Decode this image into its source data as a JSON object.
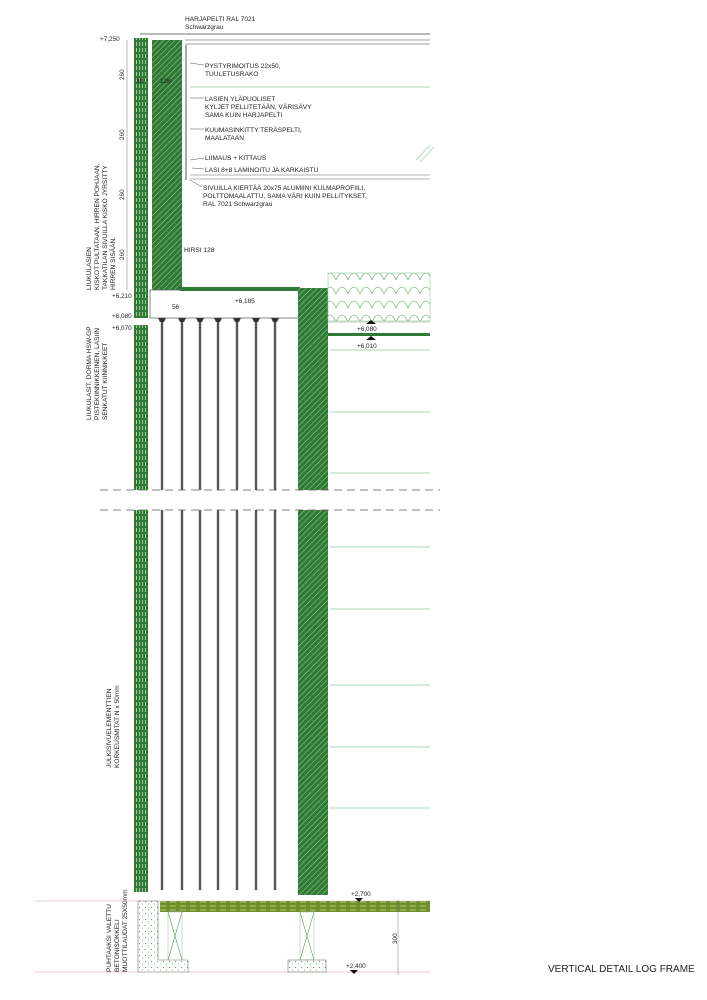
{
  "colors": {
    "log_green": "#2f7a35",
    "hatch_light": "#9fd39f",
    "slab_olive": "#6f8f2a",
    "line_green": "#8fc79b",
    "concrete": "#5aa05a"
  },
  "title": "VERTICAL DETAIL LOG FRAME",
  "annotations": {
    "roof_flashing": [
      "HARJAPELTI RAL 7021",
      "Schwarzgrau"
    ],
    "battens": [
      "PYSTYRIMOITUS 22x50,",
      "TUULETUSRAKO"
    ],
    "glass_edges": [
      "LASIEN YLÄPUOLISET",
      "KYLJET PELLITETÄÄN, VÄRISÄVY",
      "SAMA KUIN HARJAPELTI"
    ],
    "steel_sheet": [
      "KUUMASINKITTY TERÄSPELTI,",
      "MAALATAAN"
    ],
    "gluing": "LIIMAUS + KITTAUS",
    "glass": "LASI 8+8 LAMINOITU JA KARKAISTU",
    "profile": [
      "SIVUILLA KIERTÄÄ 20x75 ALUMIINI KULMAPROFIILI,",
      "POLTTOMAALATTU, SAMA VÄRI KUIN PELLITYKSET,",
      "RAL 7021 Schwarzgrau"
    ],
    "log": "HIRSI  128",
    "rails": [
      "LIUKULASIEN",
      "KISKOT PULTATAAN, HIRREN POHJAAN,",
      "TAKKATILAN SIVUILLA KISKO JYRSITTY",
      "HIRREN SISÄÄN."
    ],
    "sliding_glass": [
      "LIUKULASIT, DORMA HSW-GP",
      "PISTEKIINNIKKEINEN, LASIIN",
      "SENKATUT KIINNIKKEET"
    ],
    "facade_heights": [
      "JULKISIVUELEMENTTIEN",
      "KORKEUSMITAT N x 50mm"
    ],
    "plinth": [
      "PUHTAAKSI VALETTU",
      "BETONISOKKELI",
      "MUOTTILAUDAT 25X50mm"
    ]
  },
  "levels": [
    "+7,250",
    "+6,210",
    "+6,080",
    "+6,070",
    "+6,185",
    "+6,080",
    "+6,010",
    "+2,700",
    "+2,400"
  ],
  "dimensions": {
    "course": "260",
    "plinth_height": "300",
    "rail_offset": "56",
    "batten": "30",
    "log_width": "128"
  }
}
